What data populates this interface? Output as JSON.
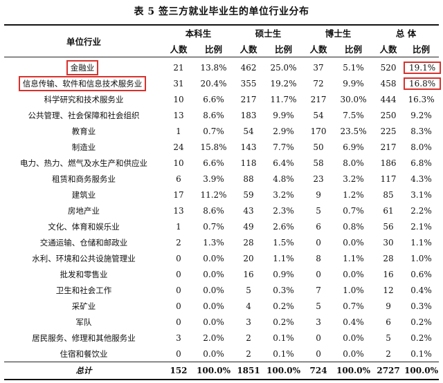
{
  "title": "表 5 签三方就业毕业生的单位行业分布",
  "headers": {
    "industry": "单位行业",
    "groups": [
      "本科生",
      "硕士生",
      "博士生",
      "总 体"
    ],
    "sub_count": "人数",
    "sub_ratio": "比例"
  },
  "rows": [
    {
      "name": "金融业",
      "v": [
        "21",
        "13.8%",
        "462",
        "25.0%",
        "37",
        "5.1%",
        "520",
        "19.1%"
      ]
    },
    {
      "name": "信息传输、软件和信息技术服务业",
      "v": [
        "31",
        "20.4%",
        "355",
        "19.2%",
        "72",
        "9.9%",
        "458",
        "16.8%"
      ]
    },
    {
      "name": "科学研究和技术服务业",
      "v": [
        "10",
        "6.6%",
        "217",
        "11.7%",
        "217",
        "30.0%",
        "444",
        "16.3%"
      ]
    },
    {
      "name": "公共管理、社会保障和社会组织",
      "v": [
        "13",
        "8.6%",
        "183",
        "9.9%",
        "54",
        "7.5%",
        "250",
        "9.2%"
      ]
    },
    {
      "name": "教育业",
      "v": [
        "1",
        "0.7%",
        "54",
        "2.9%",
        "170",
        "23.5%",
        "225",
        "8.3%"
      ]
    },
    {
      "name": "制造业",
      "v": [
        "24",
        "15.8%",
        "143",
        "7.7%",
        "50",
        "6.9%",
        "217",
        "8.0%"
      ]
    },
    {
      "name": "电力、热力、燃气及水生产和供应业",
      "v": [
        "10",
        "6.6%",
        "118",
        "6.4%",
        "58",
        "8.0%",
        "186",
        "6.8%"
      ]
    },
    {
      "name": "租赁和商务服务业",
      "v": [
        "6",
        "3.9%",
        "88",
        "4.8%",
        "23",
        "3.2%",
        "117",
        "4.3%"
      ]
    },
    {
      "name": "建筑业",
      "v": [
        "17",
        "11.2%",
        "59",
        "3.2%",
        "9",
        "1.2%",
        "85",
        "3.1%"
      ]
    },
    {
      "name": "房地产业",
      "v": [
        "13",
        "8.6%",
        "43",
        "2.3%",
        "5",
        "0.7%",
        "61",
        "2.2%"
      ]
    },
    {
      "name": "文化、体育和娱乐业",
      "v": [
        "1",
        "0.7%",
        "49",
        "2.6%",
        "6",
        "0.8%",
        "56",
        "2.1%"
      ]
    },
    {
      "name": "交通运输、仓储和邮政业",
      "v": [
        "2",
        "1.3%",
        "28",
        "1.5%",
        "0",
        "0.0%",
        "30",
        "1.1%"
      ]
    },
    {
      "name": "水利、环境和公共设施管理业",
      "v": [
        "0",
        "0.0%",
        "20",
        "1.1%",
        "8",
        "1.1%",
        "28",
        "1.0%"
      ]
    },
    {
      "name": "批发和零售业",
      "v": [
        "0",
        "0.0%",
        "16",
        "0.9%",
        "0",
        "0.0%",
        "16",
        "0.6%"
      ]
    },
    {
      "name": "卫生和社会工作",
      "v": [
        "0",
        "0.0%",
        "5",
        "0.3%",
        "7",
        "1.0%",
        "12",
        "0.4%"
      ]
    },
    {
      "name": "采矿业",
      "v": [
        "0",
        "0.0%",
        "4",
        "0.2%",
        "5",
        "0.7%",
        "9",
        "0.3%"
      ]
    },
    {
      "name": "军队",
      "v": [
        "0",
        "0.0%",
        "3",
        "0.2%",
        "3",
        "0.4%",
        "6",
        "0.2%"
      ]
    },
    {
      "name": "居民服务、修理和其他服务业",
      "v": [
        "3",
        "2.0%",
        "2",
        "0.1%",
        "0",
        "0.0%",
        "5",
        "0.2%"
      ]
    },
    {
      "name": "住宿和餐饮业",
      "v": [
        "0",
        "0.0%",
        "2",
        "0.1%",
        "0",
        "0.0%",
        "2",
        "0.1%"
      ]
    }
  ],
  "total": {
    "name": "总计",
    "v": [
      "152",
      "100.0%",
      "1851",
      "100.0%",
      "724",
      "100.0%",
      "2727",
      "100.0%"
    ]
  },
  "highlight_color": "#d9302c"
}
